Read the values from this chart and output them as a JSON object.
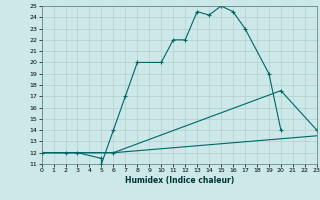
{
  "xlabel": "Humidex (Indice chaleur)",
  "bg_color": "#cce8e8",
  "grid_color": "#b0c8c8",
  "line_color": "#006666",
  "xlim": [
    0,
    23
  ],
  "ylim": [
    11,
    25
  ],
  "xticks": [
    0,
    1,
    2,
    3,
    4,
    5,
    6,
    7,
    8,
    9,
    10,
    11,
    12,
    13,
    14,
    15,
    16,
    17,
    18,
    19,
    20,
    21,
    22,
    23
  ],
  "yticks": [
    11,
    12,
    13,
    14,
    15,
    16,
    17,
    18,
    19,
    20,
    21,
    22,
    23,
    24,
    25
  ],
  "line1_x": [
    0,
    2,
    3,
    5,
    5,
    6,
    7,
    8,
    10,
    11,
    12,
    13,
    14,
    15,
    16,
    17,
    19,
    20
  ],
  "line1_y": [
    12,
    12,
    12,
    11.5,
    11,
    14,
    17,
    20,
    20,
    22,
    22,
    24.5,
    24.2,
    25,
    24.5,
    23,
    19,
    14
  ],
  "line2_x": [
    0,
    6,
    20,
    23
  ],
  "line2_y": [
    12,
    12,
    17.5,
    14
  ],
  "line3_x": [
    0,
    6,
    23
  ],
  "line3_y": [
    12,
    12,
    13.5
  ],
  "label_fontsize": 5.5,
  "tick_fontsize": 4.5
}
